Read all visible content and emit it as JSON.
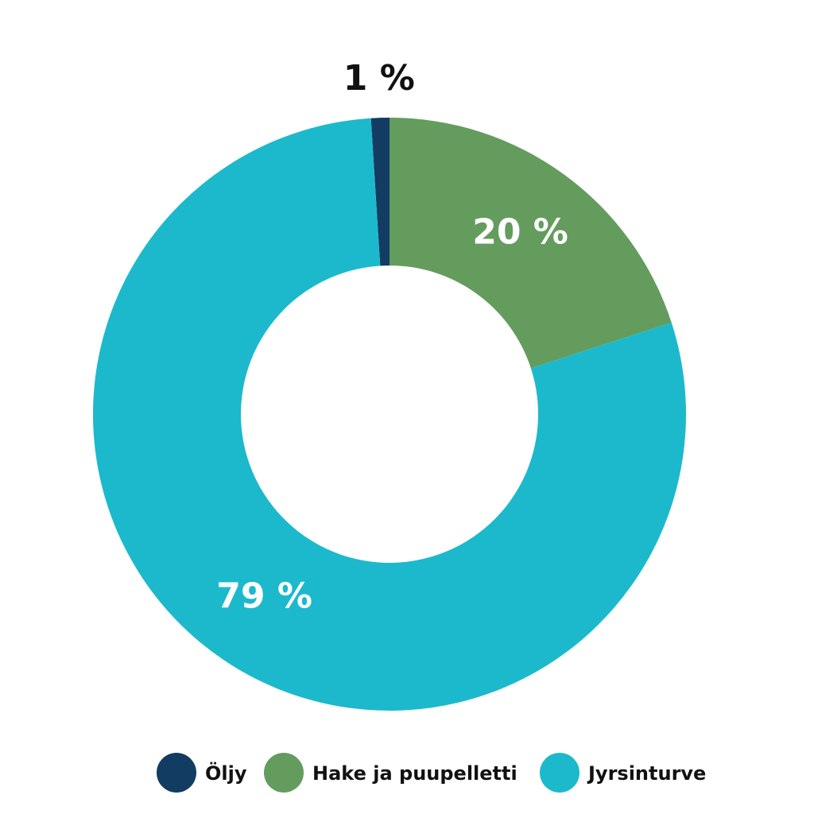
{
  "chart_data": {
    "type": "donut",
    "series": [
      {
        "name": "Öljy",
        "color": "#123c62"
      },
      {
        "name": "Hake ja puupelletti",
        "color": "#649c5e"
      },
      {
        "name": "Jyrsinturve",
        "color": "#1cb9cc"
      }
    ],
    "values": [
      1,
      20,
      79
    ],
    "value_labels": [
      "1 %",
      "20 %",
      "79 %"
    ]
  }
}
